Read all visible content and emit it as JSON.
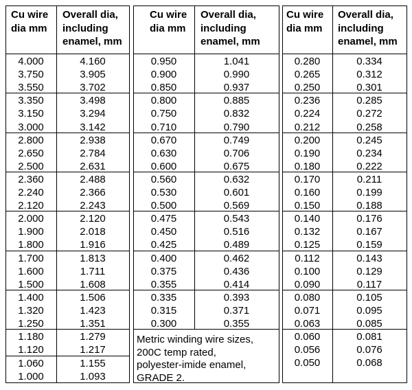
{
  "groups": [
    {
      "headers": [
        [
          "Cu wire",
          "dia mm"
        ],
        [
          "Overall dia,",
          "including",
          "enamel, mm"
        ]
      ],
      "blocks": [
        [
          [
            "4.000",
            "4.160"
          ],
          [
            "3.750",
            "3.905"
          ],
          [
            "3.550",
            "3.702"
          ]
        ],
        [
          [
            "3.350",
            "3.498"
          ],
          [
            "3.150",
            "3.294"
          ],
          [
            "3.000",
            "3.142"
          ]
        ],
        [
          [
            "2.800",
            "2.938"
          ],
          [
            "2.650",
            "2.784"
          ],
          [
            "2.500",
            "2.631"
          ]
        ],
        [
          [
            "2.360",
            "2.488"
          ],
          [
            "2.240",
            "2.366"
          ],
          [
            "2.120",
            "2.243"
          ]
        ],
        [
          [
            "2.000",
            "2.120"
          ],
          [
            "1.900",
            "2.018"
          ],
          [
            "1.800",
            "1.916"
          ]
        ],
        [
          [
            "1.700",
            "1.813"
          ],
          [
            "1.600",
            "1.711"
          ],
          [
            "1.500",
            "1.608"
          ]
        ],
        [
          [
            "1.400",
            "1.506"
          ],
          [
            "1.320",
            "1.423"
          ],
          [
            "1.250",
            "1.351"
          ]
        ],
        [
          [
            "1.180",
            "1.279"
          ],
          [
            "1.120",
            "1.217"
          ]
        ],
        [
          [
            "1.060",
            "1.155"
          ],
          [
            "1.000",
            "1.093"
          ]
        ]
      ]
    },
    {
      "headers": [
        [
          "Cu wire",
          "dia mm"
        ],
        [
          "Overall dia,",
          "including",
          "enamel, mm"
        ]
      ],
      "blocks": [
        [
          [
            "0.950",
            "1.041"
          ],
          [
            "0.900",
            "0.990"
          ],
          [
            "0.850",
            "0.937"
          ]
        ],
        [
          [
            "0.800",
            "0.885"
          ],
          [
            "0.750",
            "0.832"
          ],
          [
            "0.710",
            "0.790"
          ]
        ],
        [
          [
            "0.670",
            "0.749"
          ],
          [
            "0.630",
            "0.706"
          ],
          [
            "0.600",
            "0.675"
          ]
        ],
        [
          [
            "0.560",
            "0.632"
          ],
          [
            "0.530",
            "0.601"
          ],
          [
            "0.500",
            "0.569"
          ]
        ],
        [
          [
            "0.475",
            "0.543"
          ],
          [
            "0.450",
            "0.516"
          ],
          [
            "0.425",
            "0.489"
          ]
        ],
        [
          [
            "0.400",
            "0.462"
          ],
          [
            "0.375",
            "0.436"
          ],
          [
            "0.355",
            "0.414"
          ]
        ],
        [
          [
            "0.335",
            "0.393"
          ],
          [
            "0.315",
            "0.371"
          ],
          [
            "0.300",
            "0.355"
          ]
        ]
      ]
    },
    {
      "headers": [
        [
          "Cu wire",
          "dia mm"
        ],
        [
          "Overall dia,",
          "including",
          "enamel, mm"
        ]
      ],
      "blocks": [
        [
          [
            "0.280",
            "0.334"
          ],
          [
            "0.265",
            "0.312"
          ],
          [
            "0.250",
            "0.301"
          ]
        ],
        [
          [
            "0.236",
            "0.285"
          ],
          [
            "0.224",
            "0.272"
          ],
          [
            "0.212",
            "0.258"
          ]
        ],
        [
          [
            "0.200",
            "0.245"
          ],
          [
            "0.190",
            "0.234"
          ],
          [
            "0.180",
            "0.222"
          ]
        ],
        [
          [
            "0.170",
            "0.211"
          ],
          [
            "0.160",
            "0.199"
          ],
          [
            "0.150",
            "0.188"
          ]
        ],
        [
          [
            "0.140",
            "0.176"
          ],
          [
            "0.132",
            "0.167"
          ],
          [
            "0.125",
            "0.159"
          ]
        ],
        [
          [
            "0.112",
            "0.143"
          ],
          [
            "0.100",
            "0.129"
          ],
          [
            "0.090",
            "0.117"
          ]
        ],
        [
          [
            "0.080",
            "0.105"
          ],
          [
            "0.071",
            "0.095"
          ],
          [
            "0.063",
            "0.085"
          ]
        ],
        [
          [
            "0.060",
            "0.081"
          ],
          [
            "0.056",
            "0.076"
          ],
          [
            "0.050",
            "0.068"
          ]
        ]
      ]
    }
  ],
  "note": [
    "Metric winding wire sizes,",
    "200C temp rated,",
    "polyester-imide enamel,",
    "GRADE 2."
  ]
}
